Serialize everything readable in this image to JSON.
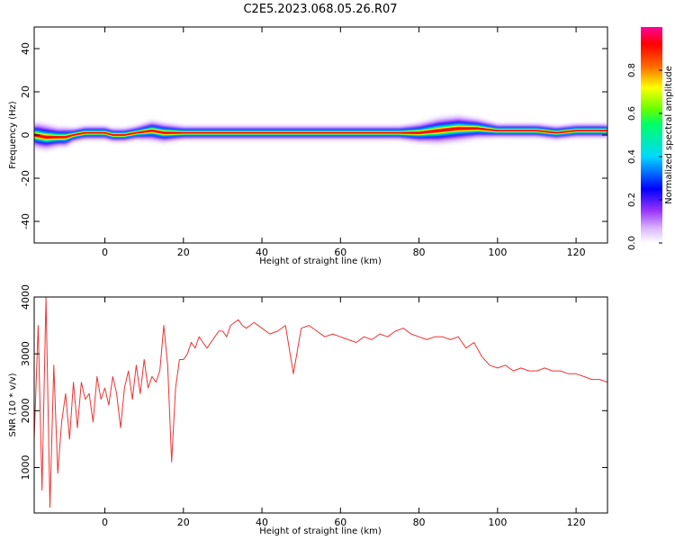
{
  "title": "C2E5.2023.068.05.26.R07",
  "colors": {
    "snr_line": "#ee3333",
    "background": "#ffffff",
    "colormap": [
      "#ffffff",
      "#d9b3ff",
      "#9933ff",
      "#0000ff",
      "#00d9ff",
      "#00ff66",
      "#66ff00",
      "#ffff00",
      "#ff6600",
      "#ff0000",
      "#ff0099"
    ]
  },
  "chart_data": [
    {
      "type": "heatmap",
      "xlabel": "Height of straight line (km)",
      "ylabel": "Frequency (Hz)",
      "xlim": [
        -18,
        128
      ],
      "ylim": [
        -50,
        50
      ],
      "x_ticks": [
        0,
        20,
        40,
        60,
        80,
        100,
        120
      ],
      "x_tick_labels": [
        "0",
        "20",
        "40",
        "60",
        "80",
        "100",
        "120"
      ],
      "y_ticks": [
        40,
        20,
        0,
        -20,
        -40
      ],
      "y_tick_labels": [
        "40",
        "20",
        "0",
        "-20",
        "-40"
      ],
      "colorbar": {
        "label": "Normalized spectral amplitude",
        "range": [
          0,
          1
        ],
        "ticks": [
          0,
          0.2,
          0.4,
          0.6,
          0.8
        ],
        "tick_labels": [
          "0.0",
          "0.2",
          "0.4",
          "0.6",
          "0.8"
        ]
      },
      "ridge": {
        "x": [
          -18,
          -15,
          -12,
          -10,
          -8,
          -5,
          0,
          2,
          5,
          8,
          12,
          15,
          20,
          30,
          40,
          60,
          75,
          80,
          85,
          90,
          95,
          100,
          110,
          115,
          120,
          128
        ],
        "y": [
          0,
          -1,
          -1,
          -1,
          0,
          1,
          1,
          0,
          0,
          1,
          2,
          1,
          1,
          1,
          1,
          1,
          1,
          1,
          2,
          3,
          3,
          2,
          2,
          1,
          2,
          2
        ],
        "width_hz": [
          4,
          4,
          3,
          3,
          2,
          2,
          2,
          2,
          2,
          2,
          3,
          3,
          2,
          2,
          2,
          2,
          2,
          3,
          4,
          4,
          3,
          2,
          2,
          2,
          2,
          2
        ]
      },
      "grid": false
    },
    {
      "type": "line",
      "xlabel": "Height of straight line (km)",
      "ylabel": "SNR (10 * v/v)",
      "xlim": [
        -18,
        128
      ],
      "ylim": [
        200,
        4000
      ],
      "x_ticks": [
        0,
        20,
        40,
        60,
        80,
        100,
        120
      ],
      "x_tick_labels": [
        "0",
        "20",
        "40",
        "60",
        "80",
        "100",
        "120"
      ],
      "y_ticks": [
        1000,
        2000,
        3000,
        4000
      ],
      "y_tick_labels": [
        "1000",
        "2000",
        "3000",
        "4000"
      ],
      "series": [
        {
          "x": [
            -18,
            -17,
            -16,
            -15,
            -14,
            -13,
            -12,
            -11,
            -10,
            -9,
            -8,
            -7,
            -6,
            -5,
            -4,
            -3,
            -2,
            -1,
            0,
            1,
            2,
            3,
            4,
            5,
            6,
            7,
            8,
            9,
            10,
            11,
            12,
            13,
            14,
            15,
            16,
            17,
            18,
            19,
            20,
            21,
            22,
            23,
            24,
            25,
            26,
            27,
            28,
            29,
            30,
            31,
            32,
            33,
            34,
            35,
            36,
            38,
            40,
            42,
            44,
            46,
            48,
            50,
            52,
            54,
            56,
            58,
            60,
            62,
            64,
            66,
            68,
            70,
            72,
            74,
            76,
            78,
            80,
            82,
            84,
            86,
            88,
            90,
            92,
            94,
            96,
            98,
            100,
            102,
            104,
            106,
            108,
            110,
            112,
            114,
            116,
            118,
            120,
            122,
            124,
            126,
            128
          ],
          "y": [
            1500,
            3500,
            600,
            4000,
            300,
            2800,
            900,
            1800,
            2300,
            1500,
            2500,
            1700,
            2500,
            2200,
            2300,
            1800,
            2600,
            2200,
            2400,
            2100,
            2600,
            2300,
            1700,
            2400,
            2700,
            2200,
            2800,
            2300,
            2900,
            2400,
            2600,
            2500,
            2700,
            3500,
            2800,
            1100,
            2400,
            2900,
            2900,
            3000,
            3200,
            3100,
            3300,
            3200,
            3100,
            3200,
            3300,
            3400,
            3400,
            3300,
            3500,
            3550,
            3600,
            3500,
            3450,
            3550,
            3450,
            3350,
            3400,
            3500,
            2650,
            3450,
            3500,
            3400,
            3300,
            3350,
            3300,
            3250,
            3200,
            3300,
            3250,
            3350,
            3300,
            3400,
            3450,
            3350,
            3300,
            3250,
            3300,
            3300,
            3250,
            3300,
            3100,
            3200,
            2950,
            2800,
            2750,
            2800,
            2700,
            2750,
            2700,
            2700,
            2750,
            2700,
            2700,
            2650,
            2650,
            2600,
            2550,
            2550,
            2500
          ]
        }
      ],
      "grid": false
    }
  ]
}
